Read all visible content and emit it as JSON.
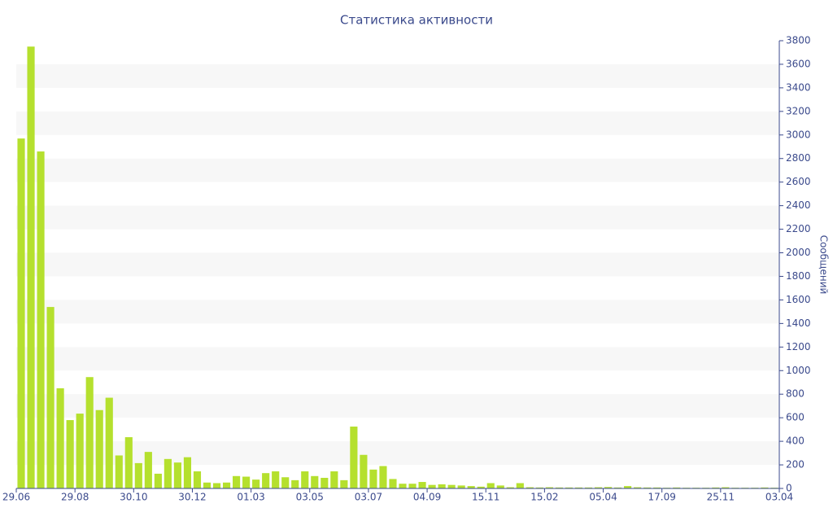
{
  "chart_data": {
    "type": "bar",
    "title": "Статистика активности",
    "y_label": "Сообщений",
    "values": [
      2970,
      3750,
      2860,
      1540,
      850,
      580,
      635,
      945,
      665,
      770,
      280,
      435,
      215,
      310,
      125,
      250,
      220,
      265,
      145,
      50,
      45,
      50,
      105,
      100,
      75,
      130,
      145,
      95,
      70,
      145,
      105,
      90,
      145,
      70,
      525,
      285,
      160,
      190,
      80,
      40,
      40,
      55,
      30,
      35,
      30,
      25,
      20,
      15,
      45,
      25,
      10,
      45,
      10,
      8,
      10,
      8,
      8,
      8,
      8,
      10,
      12,
      8,
      20,
      10,
      8,
      8,
      6,
      8,
      6,
      6,
      6,
      8,
      10,
      6,
      6,
      6,
      8,
      6
    ],
    "color": "#b5e02e",
    "xlim": [
      0,
      78
    ],
    "xticks": [
      {
        "value": 0,
        "label": "29.06"
      },
      {
        "value": 6,
        "label": "29.08"
      },
      {
        "value": 12,
        "label": "30.10"
      },
      {
        "value": 18,
        "label": "30.12"
      },
      {
        "value": 24,
        "label": "01.03"
      },
      {
        "value": 30,
        "label": "03.05"
      },
      {
        "value": 36,
        "label": "03.07"
      },
      {
        "value": 42,
        "label": "04.09"
      },
      {
        "value": 48,
        "label": "15.11"
      },
      {
        "value": 54,
        "label": "15.02"
      },
      {
        "value": 60,
        "label": "05.04"
      },
      {
        "value": 66,
        "label": "17.09"
      },
      {
        "value": 72,
        "label": "25.11"
      },
      {
        "value": 78,
        "label": "03.04"
      }
    ],
    "ylim": [
      0,
      3800
    ],
    "yticks": [
      0,
      200,
      400,
      600,
      800,
      1000,
      1200,
      1400,
      1600,
      1800,
      2000,
      2200,
      2400,
      2600,
      2800,
      3000,
      3200,
      3400,
      3600,
      3800
    ],
    "y_axis_side": "right",
    "grid_bands": true
  }
}
